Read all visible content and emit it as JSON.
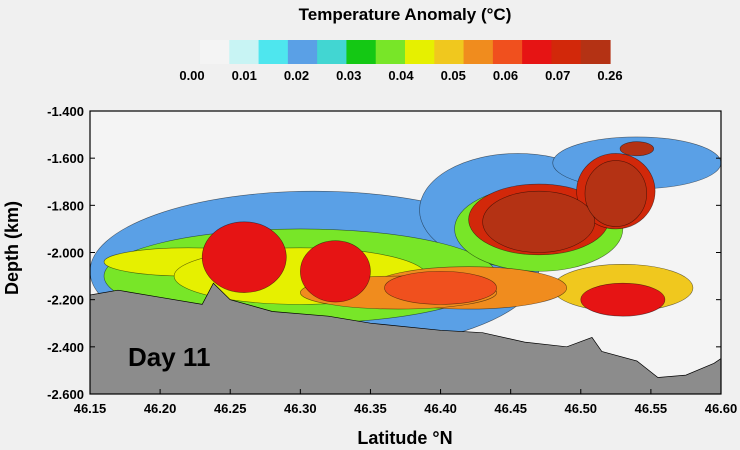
{
  "chart_data": {
    "type": "heatmap",
    "title": "Temperature Anomaly (°C)",
    "xlabel": "Latitude °N",
    "ylabel": "Depth (km)",
    "annotation": "Day 11",
    "xlim": [
      46.15,
      46.6
    ],
    "ylim": [
      -2.6,
      -1.4
    ],
    "x_ticks": [
      "46.15",
      "46.20",
      "46.25",
      "46.30",
      "46.35",
      "46.40",
      "46.45",
      "46.50",
      "46.55",
      "46.60"
    ],
    "y_ticks": [
      "-1.400",
      "-1.600",
      "-1.800",
      "-2.000",
      "-2.200",
      "-2.400",
      "-2.600"
    ],
    "colorbar": {
      "labels": [
        "0.00",
        "0.01",
        "0.02",
        "0.03",
        "0.04",
        "0.05",
        "0.06",
        "0.07",
        "0.26"
      ],
      "colors": [
        "#f4f4f4",
        "#c8f4f4",
        "#4ee6ee",
        "#5aa0e6",
        "#42d6d2",
        "#14c814",
        "#78e628",
        "#e6f000",
        "#f0c81e",
        "#f08c1e",
        "#f0501e",
        "#e61414",
        "#d2280a",
        "#b43214"
      ]
    },
    "bathymetry": [
      {
        "x": 46.15,
        "y": -2.18
      },
      {
        "x": 46.17,
        "y": -2.16
      },
      {
        "x": 46.2,
        "y": -2.19
      },
      {
        "x": 46.23,
        "y": -2.22
      },
      {
        "x": 46.238,
        "y": -2.13
      },
      {
        "x": 46.25,
        "y": -2.2
      },
      {
        "x": 46.28,
        "y": -2.25
      },
      {
        "x": 46.32,
        "y": -2.27
      },
      {
        "x": 46.35,
        "y": -2.3
      },
      {
        "x": 46.4,
        "y": -2.33
      },
      {
        "x": 46.43,
        "y": -2.34
      },
      {
        "x": 46.46,
        "y": -2.38
      },
      {
        "x": 46.49,
        "y": -2.4
      },
      {
        "x": 46.508,
        "y": -2.36
      },
      {
        "x": 46.515,
        "y": -2.42
      },
      {
        "x": 46.54,
        "y": -2.46
      },
      {
        "x": 46.555,
        "y": -2.53
      },
      {
        "x": 46.575,
        "y": -2.52
      },
      {
        "x": 46.595,
        "y": -2.47
      },
      {
        "x": 46.6,
        "y": -2.45
      }
    ],
    "anomalies": [
      {
        "x": 46.31,
        "y": -2.08,
        "rx": 0.16,
        "ry": 0.34,
        "level": 3
      },
      {
        "x": 46.455,
        "y": -1.82,
        "rx": 0.07,
        "ry": 0.24,
        "level": 3
      },
      {
        "x": 46.54,
        "y": -1.62,
        "rx": 0.06,
        "ry": 0.11,
        "level": 3
      },
      {
        "x": 46.3,
        "y": -2.1,
        "rx": 0.14,
        "ry": 0.2,
        "level": 6
      },
      {
        "x": 46.47,
        "y": -1.9,
        "rx": 0.06,
        "ry": 0.18,
        "level": 6
      },
      {
        "x": 46.22,
        "y": -2.04,
        "rx": 0.06,
        "ry": 0.06,
        "level": 7
      },
      {
        "x": 46.3,
        "y": -2.1,
        "rx": 0.09,
        "ry": 0.12,
        "level": 7
      },
      {
        "x": 46.42,
        "y": -2.15,
        "rx": 0.07,
        "ry": 0.09,
        "level": 9
      },
      {
        "x": 46.53,
        "y": -2.15,
        "rx": 0.05,
        "ry": 0.1,
        "level": 8
      },
      {
        "x": 46.37,
        "y": -2.17,
        "rx": 0.07,
        "ry": 0.07,
        "level": 9
      },
      {
        "x": 46.26,
        "y": -2.02,
        "rx": 0.03,
        "ry": 0.15,
        "level": 11
      },
      {
        "x": 46.325,
        "y": -2.08,
        "rx": 0.025,
        "ry": 0.13,
        "level": 11
      },
      {
        "x": 46.4,
        "y": -2.15,
        "rx": 0.04,
        "ry": 0.07,
        "level": 10
      },
      {
        "x": 46.53,
        "y": -2.2,
        "rx": 0.03,
        "ry": 0.07,
        "level": 11
      },
      {
        "x": 46.47,
        "y": -1.86,
        "rx": 0.05,
        "ry": 0.15,
        "level": 12
      },
      {
        "x": 46.525,
        "y": -1.74,
        "rx": 0.028,
        "ry": 0.16,
        "level": 12
      },
      {
        "x": 46.47,
        "y": -1.87,
        "rx": 0.04,
        "ry": 0.13,
        "level": 13
      },
      {
        "x": 46.525,
        "y": -1.75,
        "rx": 0.022,
        "ry": 0.14,
        "level": 13
      },
      {
        "x": 46.54,
        "y": -1.56,
        "rx": 0.012,
        "ry": 0.03,
        "level": 13
      }
    ]
  }
}
